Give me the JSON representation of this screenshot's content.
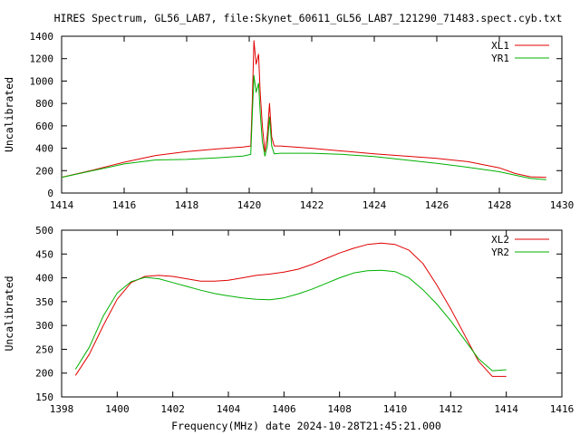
{
  "title": "HIRES Spectrum, GL56_LAB7, file:Skynet_60611_GL56_LAB7_121290_71483.spect.cyb.txt",
  "colors": {
    "red": "#e00000",
    "green": "#00b000",
    "axis": "#000000"
  },
  "chart_data": [
    {
      "type": "line",
      "ylabel": "Uncalibrated",
      "xlabel": "",
      "xlim": [
        1414,
        1430
      ],
      "ylim": [
        0,
        1400
      ],
      "xticks": [
        "1414",
        "1416",
        "1418",
        "1420",
        "1422",
        "1424",
        "1426",
        "1428",
        "1430"
      ],
      "yticks": [
        "0",
        "200",
        "400",
        "600",
        "800",
        "1000",
        "1200",
        "1400"
      ],
      "legend_position": "top-right",
      "series": [
        {
          "name": "XL1",
          "color": "#e00000",
          "x": [
            1414.0,
            1415.0,
            1416.0,
            1417.0,
            1418.0,
            1419.0,
            1419.8,
            1420.05,
            1420.1,
            1420.15,
            1420.22,
            1420.3,
            1420.35,
            1420.42,
            1420.5,
            1420.58,
            1420.65,
            1420.72,
            1420.8,
            1421.0,
            1422.0,
            1423.0,
            1424.0,
            1425.0,
            1426.0,
            1427.0,
            1428.0,
            1428.5,
            1429.0,
            1429.5
          ],
          "y": [
            140,
            205,
            275,
            335,
            370,
            395,
            410,
            420,
            820,
            1360,
            1150,
            1240,
            900,
            600,
            370,
            520,
            800,
            500,
            420,
            420,
            400,
            375,
            350,
            330,
            310,
            280,
            225,
            175,
            145,
            140
          ]
        },
        {
          "name": "YR1",
          "color": "#00b000",
          "x": [
            1414.0,
            1415.0,
            1416.0,
            1417.0,
            1418.0,
            1419.0,
            1419.8,
            1420.05,
            1420.1,
            1420.15,
            1420.22,
            1420.3,
            1420.35,
            1420.42,
            1420.5,
            1420.58,
            1420.65,
            1420.72,
            1420.8,
            1421.0,
            1422.0,
            1423.0,
            1424.0,
            1425.0,
            1426.0,
            1427.0,
            1428.0,
            1428.5,
            1429.0,
            1429.5
          ],
          "y": [
            140,
            200,
            260,
            295,
            300,
            315,
            330,
            345,
            700,
            1050,
            900,
            980,
            720,
            460,
            330,
            420,
            680,
            420,
            350,
            355,
            355,
            345,
            325,
            295,
            265,
            230,
            190,
            160,
            130,
            120
          ]
        }
      ]
    },
    {
      "type": "line",
      "ylabel": "Uncalibrated",
      "xlabel": "Frequency(MHz) date 2024-10-28T21:45:21.000",
      "xlim": [
        1398,
        1416
      ],
      "ylim": [
        150,
        500
      ],
      "xticks": [
        "1398",
        "1400",
        "1402",
        "1404",
        "1406",
        "1408",
        "1410",
        "1412",
        "1414",
        "1416"
      ],
      "yticks": [
        "150",
        "200",
        "250",
        "300",
        "350",
        "400",
        "450",
        "500"
      ],
      "legend_position": "top-right",
      "series": [
        {
          "name": "XL2",
          "color": "#e00000",
          "x": [
            1398.5,
            1399.0,
            1399.5,
            1400.0,
            1400.5,
            1401.0,
            1401.5,
            1402.0,
            1402.5,
            1403.0,
            1403.5,
            1404.0,
            1404.5,
            1405.0,
            1405.5,
            1406.0,
            1406.5,
            1407.0,
            1407.5,
            1408.0,
            1408.5,
            1409.0,
            1409.5,
            1410.0,
            1410.5,
            1411.0,
            1411.5,
            1412.0,
            1412.5,
            1413.0,
            1413.5,
            1414.0
          ],
          "y": [
            195,
            240,
            300,
            355,
            390,
            403,
            405,
            403,
            398,
            393,
            393,
            395,
            400,
            405,
            408,
            412,
            418,
            428,
            440,
            452,
            462,
            470,
            473,
            470,
            458,
            430,
            385,
            335,
            280,
            225,
            193,
            193
          ]
        },
        {
          "name": "YR2",
          "color": "#00b000",
          "x": [
            1398.5,
            1399.0,
            1399.5,
            1400.0,
            1400.5,
            1401.0,
            1401.5,
            1402.0,
            1402.5,
            1403.0,
            1403.5,
            1404.0,
            1404.5,
            1405.0,
            1405.5,
            1406.0,
            1406.5,
            1407.0,
            1407.5,
            1408.0,
            1408.5,
            1409.0,
            1409.5,
            1410.0,
            1410.5,
            1411.0,
            1411.5,
            1412.0,
            1412.5,
            1413.0,
            1413.5,
            1414.0
          ],
          "y": [
            208,
            255,
            320,
            368,
            392,
            401,
            398,
            390,
            382,
            374,
            367,
            362,
            358,
            355,
            354,
            358,
            366,
            376,
            388,
            400,
            410,
            415,
            416,
            413,
            400,
            375,
            345,
            310,
            270,
            230,
            205,
            207
          ]
        }
      ]
    }
  ]
}
